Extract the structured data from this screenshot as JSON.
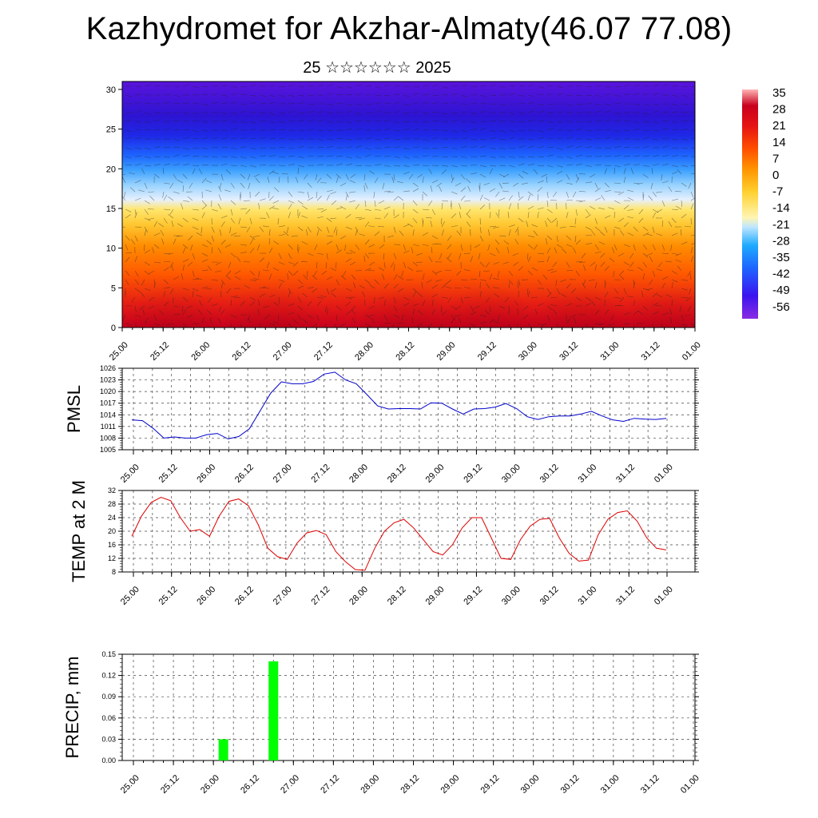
{
  "title": "Kazhydromet for Akzhar-Almaty(46.07 77.08)",
  "subtitle": "25 ☆☆☆☆☆☆ 2025",
  "chart_data": [
    {
      "type": "heatmap",
      "y_ticks": [
        "0",
        "5",
        "10",
        "15",
        "20",
        "25",
        "30"
      ],
      "ylim": [
        0,
        31
      ],
      "x_ticks": [
        "25.00",
        "25.12",
        "26.00",
        "26.12",
        "27.00",
        "27.12",
        "28.00",
        "28.12",
        "29.00",
        "29.12",
        "30.00",
        "30.12",
        "31.00",
        "31.12",
        "01.00"
      ],
      "colorbar_labels": [
        "35",
        "28",
        "21",
        "14",
        "7",
        "0",
        "-7",
        "-14",
        "-21",
        "-28",
        "-35",
        "-42",
        "-49",
        "-56"
      ],
      "colorbar_range": [
        -60,
        38
      ],
      "colors": {
        "hot": "#c8001e",
        "warm": "#ff8c00",
        "mild": "#ffe66e",
        "cold": "#3ca0ff",
        "frozen": "#5a14dc"
      }
    },
    {
      "type": "line",
      "ylabel": "PMSL",
      "ylim": [
        1005,
        1026
      ],
      "y_ticks": [
        "1005",
        "1008",
        "1011",
        "1014",
        "1017",
        "1020",
        "1023",
        "1026"
      ],
      "x_ticks": [
        "25.00",
        "25.12",
        "26.00",
        "26.12",
        "27.00",
        "27.12",
        "28.00",
        "28.12",
        "29.00",
        "29.12",
        "30.00",
        "30.12",
        "31.00",
        "31.12",
        "01.00"
      ],
      "color": "#0000cc",
      "values": [
        1012.7,
        1012.5,
        1010.5,
        1008.0,
        1008.3,
        1008.0,
        1008.0,
        1008.9,
        1009.2,
        1007.8,
        1008.4,
        1010.4,
        1015.0,
        1019.6,
        1022.5,
        1022.0,
        1022.0,
        1022.6,
        1024.5,
        1025.0,
        1023.0,
        1022.0,
        1019.2,
        1016.3,
        1015.5,
        1015.6,
        1015.6,
        1015.5,
        1017.1,
        1017.0,
        1015.5,
        1014.2,
        1015.5,
        1015.6,
        1016.0,
        1016.9,
        1015.6,
        1013.5,
        1012.8,
        1013.5,
        1013.7,
        1013.7,
        1014.2,
        1014.9,
        1013.7,
        1012.7,
        1012.3,
        1013.1,
        1012.9,
        1012.8,
        1013.1
      ]
    },
    {
      "type": "line",
      "ylabel": "TEMP at 2 M",
      "ylim": [
        8,
        32
      ],
      "y_ticks": [
        "8",
        "12",
        "16",
        "20",
        "24",
        "28",
        "32"
      ],
      "x_ticks": [
        "25.00",
        "25.12",
        "26.00",
        "26.12",
        "27.00",
        "27.12",
        "28.00",
        "28.12",
        "29.00",
        "29.12",
        "30.00",
        "30.12",
        "31.00",
        "31.12",
        "01.00"
      ],
      "color": "#dd0000",
      "values": [
        18.5,
        24.5,
        28.5,
        30.0,
        29.0,
        24.0,
        20.0,
        20.5,
        18.5,
        24.5,
        28.8,
        29.5,
        27.5,
        22.0,
        15.0,
        12.5,
        11.7,
        16.5,
        19.5,
        20.2,
        19.0,
        14.0,
        11.0,
        8.7,
        8.5,
        15.0,
        20.0,
        22.5,
        23.5,
        21.0,
        17.5,
        14.0,
        13.0,
        16.0,
        21.0,
        24.0,
        24.0,
        18.0,
        12.0,
        11.7,
        17.5,
        21.5,
        23.5,
        23.8,
        18.0,
        13.5,
        11.2,
        11.5,
        19.0,
        23.5,
        25.5,
        26.0,
        23.0,
        18.0,
        15.0,
        14.5
      ]
    },
    {
      "type": "bar",
      "ylabel": "PRECIP, mm",
      "ylim": [
        0,
        0.15
      ],
      "y_ticks": [
        "0.00",
        "0.03",
        "0.06",
        "0.09",
        "0.12",
        "0.15"
      ],
      "x_ticks": [
        "25.00",
        "25.12",
        "26.00",
        "26.12",
        "27.00",
        "27.12",
        "28.00",
        "28.12",
        "29.00",
        "29.12",
        "30.00",
        "30.12",
        "31.00",
        "31.12",
        "01.00"
      ],
      "color": "#00ff00",
      "bars": [
        {
          "x": 2.25,
          "value": 0.03
        },
        {
          "x": 3.5,
          "value": 0.14
        }
      ]
    }
  ]
}
